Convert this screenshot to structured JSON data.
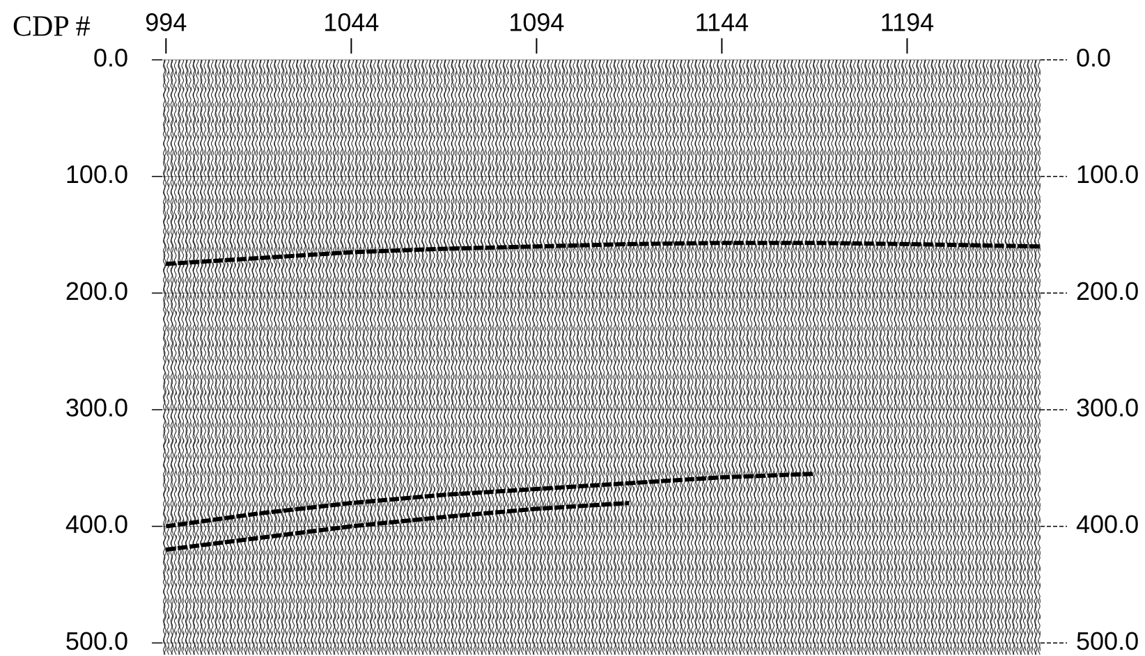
{
  "chart_data": {
    "type": "seismic",
    "x_label": "CDP #",
    "xlim": [
      993,
      1230
    ],
    "xticks": [
      994,
      1044,
      1094,
      1144,
      1194
    ],
    "ylim": [
      0,
      510
    ],
    "yticks": [
      {
        "value": 0,
        "label": "0.0"
      },
      {
        "value": 100,
        "label": "100.0"
      },
      {
        "value": 200,
        "label": "200.0"
      },
      {
        "value": 300,
        "label": "300.0"
      },
      {
        "value": 400,
        "label": "400.0"
      },
      {
        "value": 500,
        "label": "500.0"
      }
    ],
    "grid": true,
    "series": [
      {
        "color": "#000000",
        "x": [
          994,
          1019,
          1044,
          1069,
          1094,
          1119,
          1144,
          1169,
          1194,
          1230
        ],
        "values": [
          175,
          170,
          165,
          162,
          160,
          158,
          157,
          157,
          158,
          160
        ]
      },
      {
        "color": "#000000",
        "x": [
          994,
          1019,
          1044,
          1069,
          1094,
          1119,
          1144,
          1169
        ],
        "values": [
          400,
          389,
          380,
          373,
          368,
          363,
          358,
          355
        ]
      },
      {
        "color": "#000000",
        "x": [
          994,
          1019,
          1044,
          1069,
          1094,
          1119
        ],
        "values": [
          420,
          410,
          400,
          392,
          385,
          380
        ]
      }
    ]
  }
}
